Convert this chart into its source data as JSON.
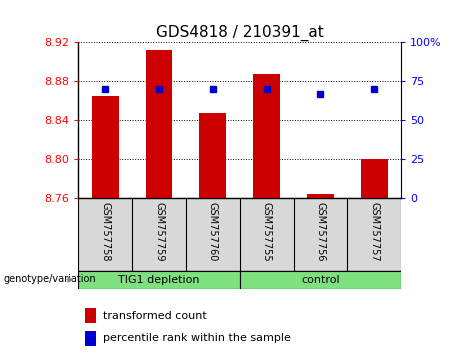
{
  "title": "GDS4818 / 210391_at",
  "samples": [
    "GSM757758",
    "GSM757759",
    "GSM757760",
    "GSM757755",
    "GSM757756",
    "GSM757757"
  ],
  "bar_values": [
    8.865,
    8.912,
    8.848,
    8.888,
    8.764,
    8.8
  ],
  "bar_base": 8.76,
  "percentile_values": [
    70,
    70,
    70,
    70,
    67,
    70
  ],
  "ylim_left": [
    8.76,
    8.92
  ],
  "ylim_right": [
    0,
    100
  ],
  "yticks_left": [
    8.76,
    8.8,
    8.84,
    8.88,
    8.92
  ],
  "yticks_right": [
    0,
    25,
    50,
    75,
    100
  ],
  "ytick_right_labels": [
    "0",
    "25",
    "50",
    "75",
    "100%"
  ],
  "bar_color": "#CC0000",
  "dot_color": "#0000CC",
  "label_transformed": "transformed count",
  "label_percentile": "percentile rank within the sample",
  "xlabel_genotype": "genotype/variation",
  "bg_color": "#d8d8d8",
  "green_color": "#7EE07E",
  "plot_bg": "#ffffff",
  "group1_label": "TIG1 depletion",
  "group2_label": "control",
  "group1_indices": [
    0,
    1,
    2
  ],
  "group2_indices": [
    3,
    4,
    5
  ],
  "bar_width": 0.5,
  "title_fontsize": 11,
  "tick_fontsize": 8,
  "sample_fontsize": 7,
  "legend_fontsize": 8
}
